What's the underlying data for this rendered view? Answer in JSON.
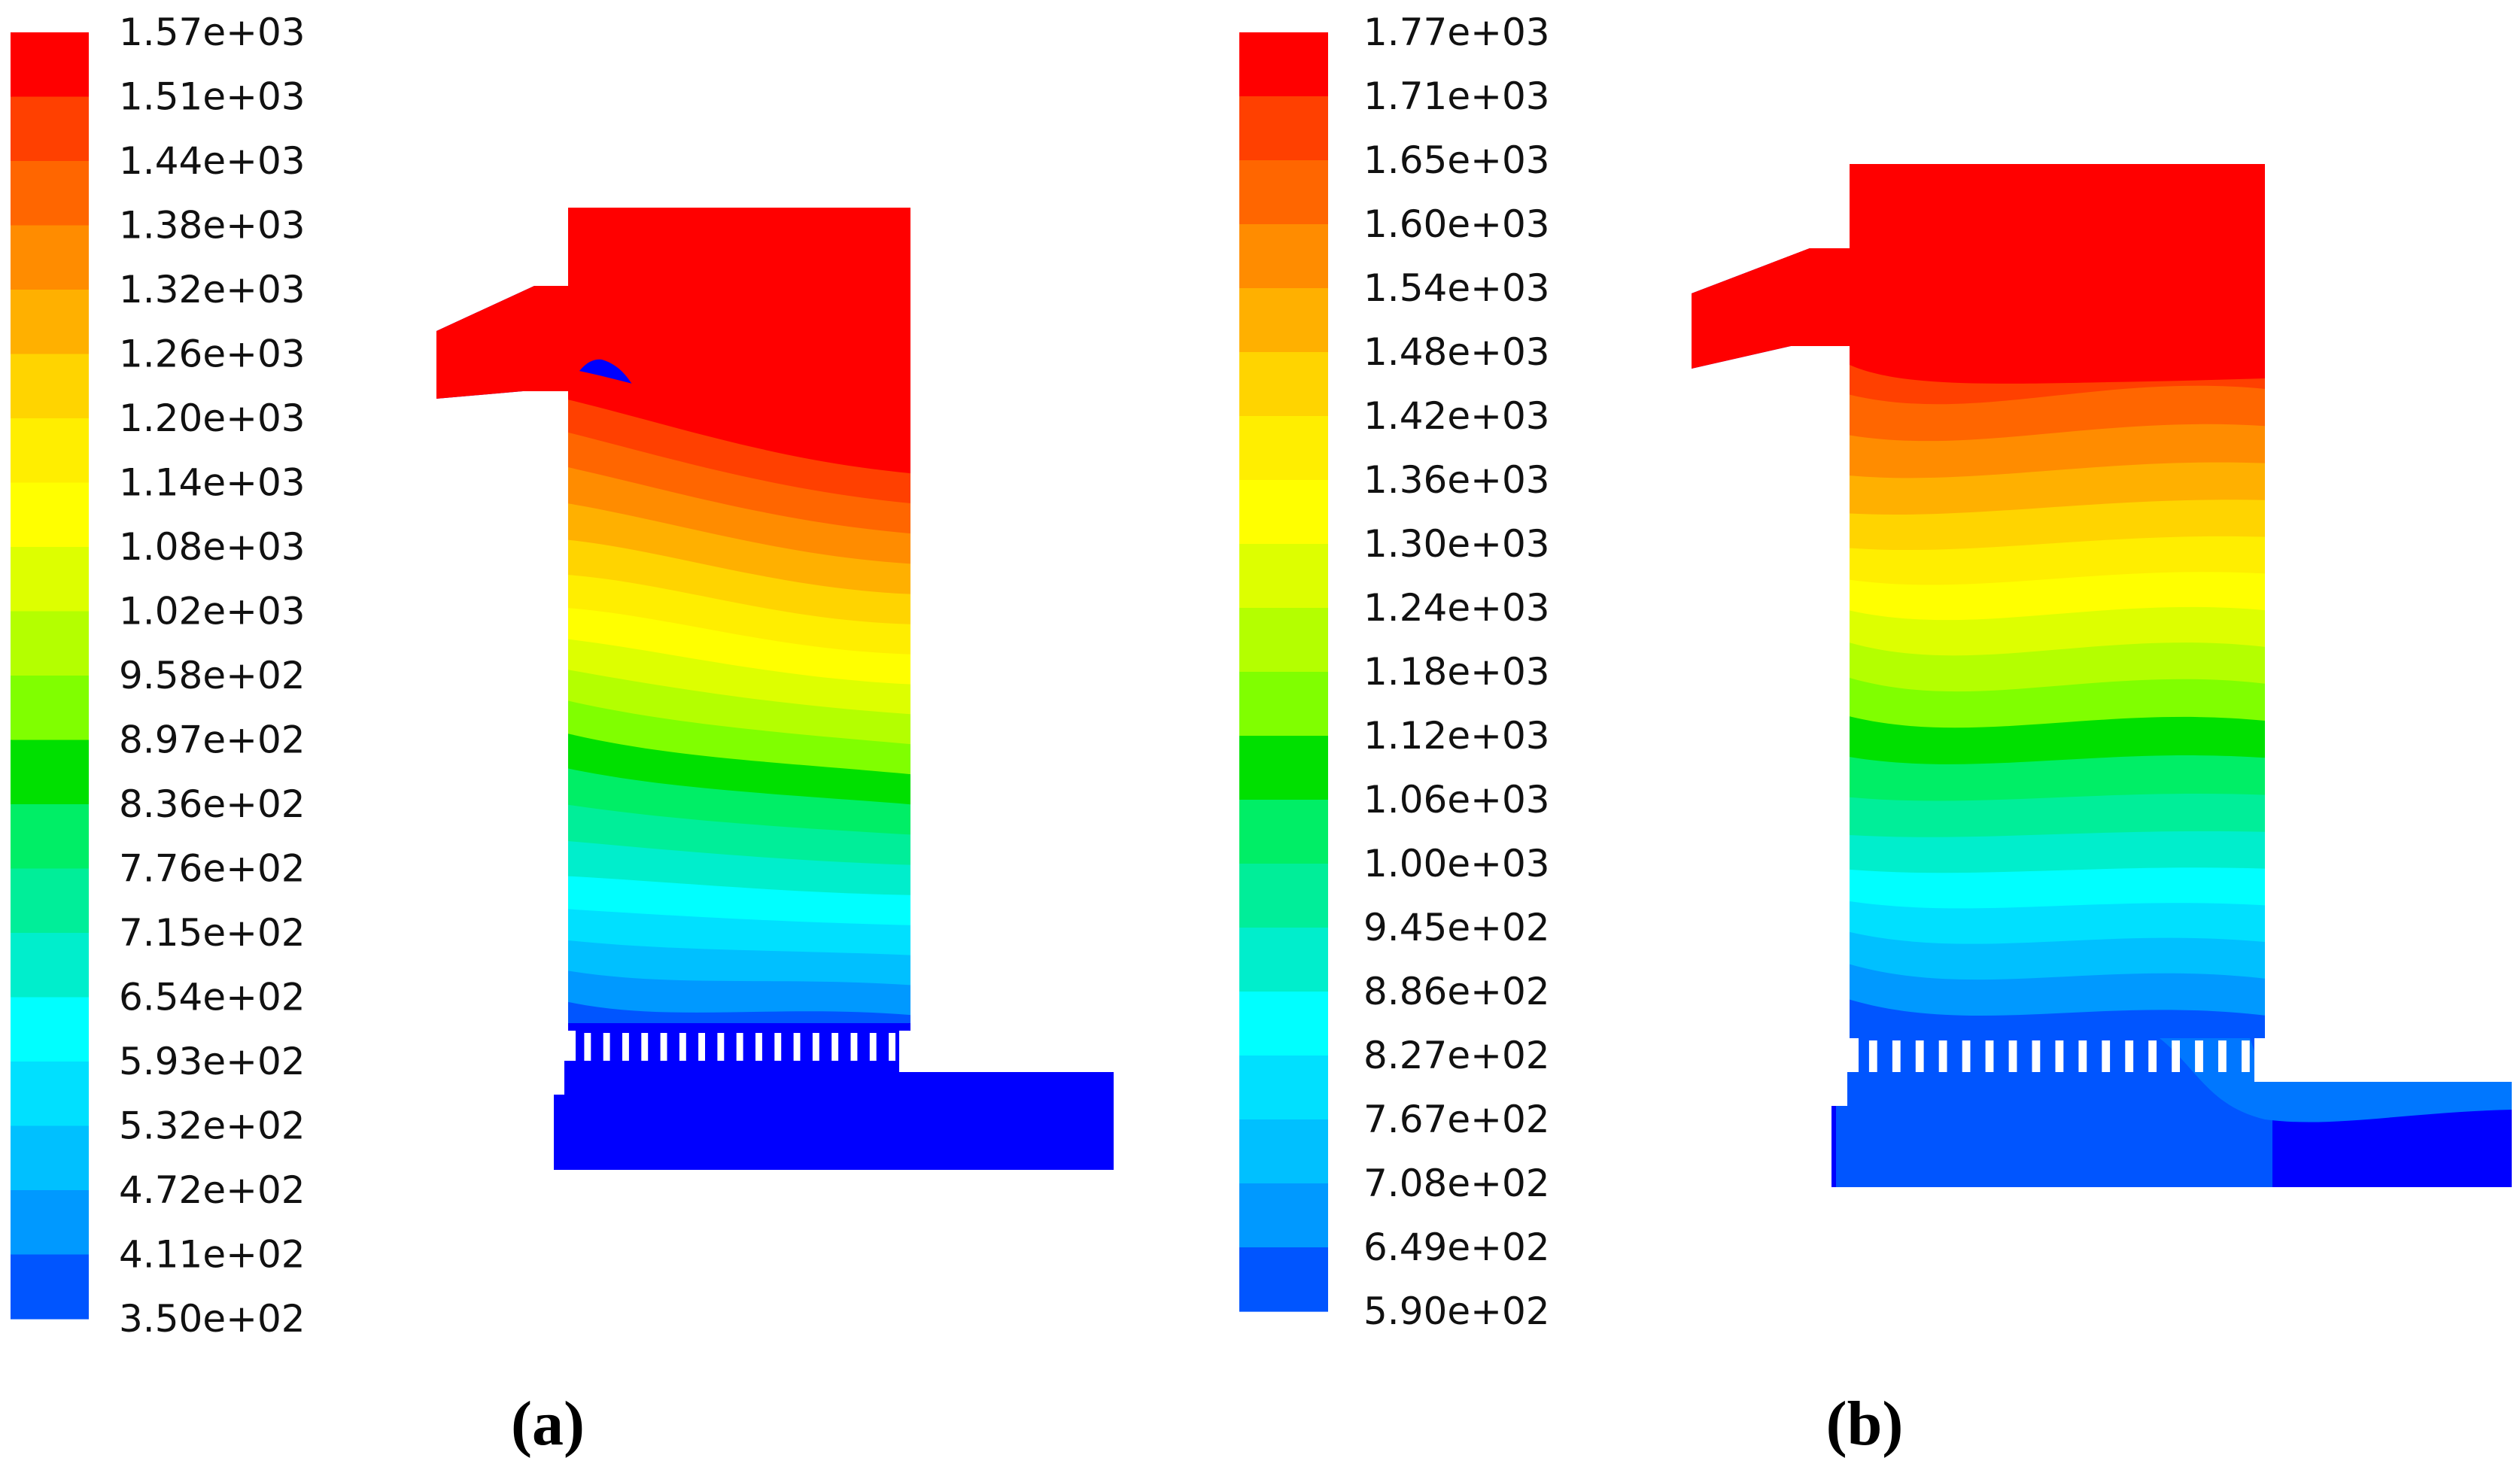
{
  "chart_data": [
    {
      "type": "heatmap",
      "panel_label": "(a)",
      "colorbar": {
        "ticks": [
          "1.57e+03",
          "1.51e+03",
          "1.44e+03",
          "1.38e+03",
          "1.32e+03",
          "1.26e+03",
          "1.20e+03",
          "1.14e+03",
          "1.08e+03",
          "1.02e+03",
          "9.58e+02",
          "8.97e+02",
          "8.36e+02",
          "7.76e+02",
          "7.15e+02",
          "6.54e+02",
          "5.93e+02",
          "5.32e+02",
          "4.72e+02",
          "4.11e+02",
          "3.50e+02"
        ],
        "min": 350,
        "max": 1570
      }
    },
    {
      "type": "heatmap",
      "panel_label": "(b)",
      "colorbar": {
        "ticks": [
          "1.77e+03",
          "1.71e+03",
          "1.65e+03",
          "1.60e+03",
          "1.54e+03",
          "1.48e+03",
          "1.42e+03",
          "1.36e+03",
          "1.30e+03",
          "1.24e+03",
          "1.18e+03",
          "1.12e+03",
          "1.06e+03",
          "1.00e+03",
          "9.45e+02",
          "8.86e+02",
          "8.27e+02",
          "7.67e+02",
          "7.08e+02",
          "6.49e+02",
          "5.90e+02"
        ],
        "min": 590,
        "max": 1770
      }
    }
  ],
  "colormap": [
    "#ff0000",
    "#ff4000",
    "#ff6600",
    "#ff8c00",
    "#ffb000",
    "#ffd400",
    "#ffee00",
    "#ffff00",
    "#ddff00",
    "#b4ff00",
    "#80ff00",
    "#00e000",
    "#00ee66",
    "#00ee99",
    "#00eecc",
    "#00ffff",
    "#00e0ff",
    "#00c0ff",
    "#0099ff",
    "#0055ff",
    "#0000ff"
  ]
}
